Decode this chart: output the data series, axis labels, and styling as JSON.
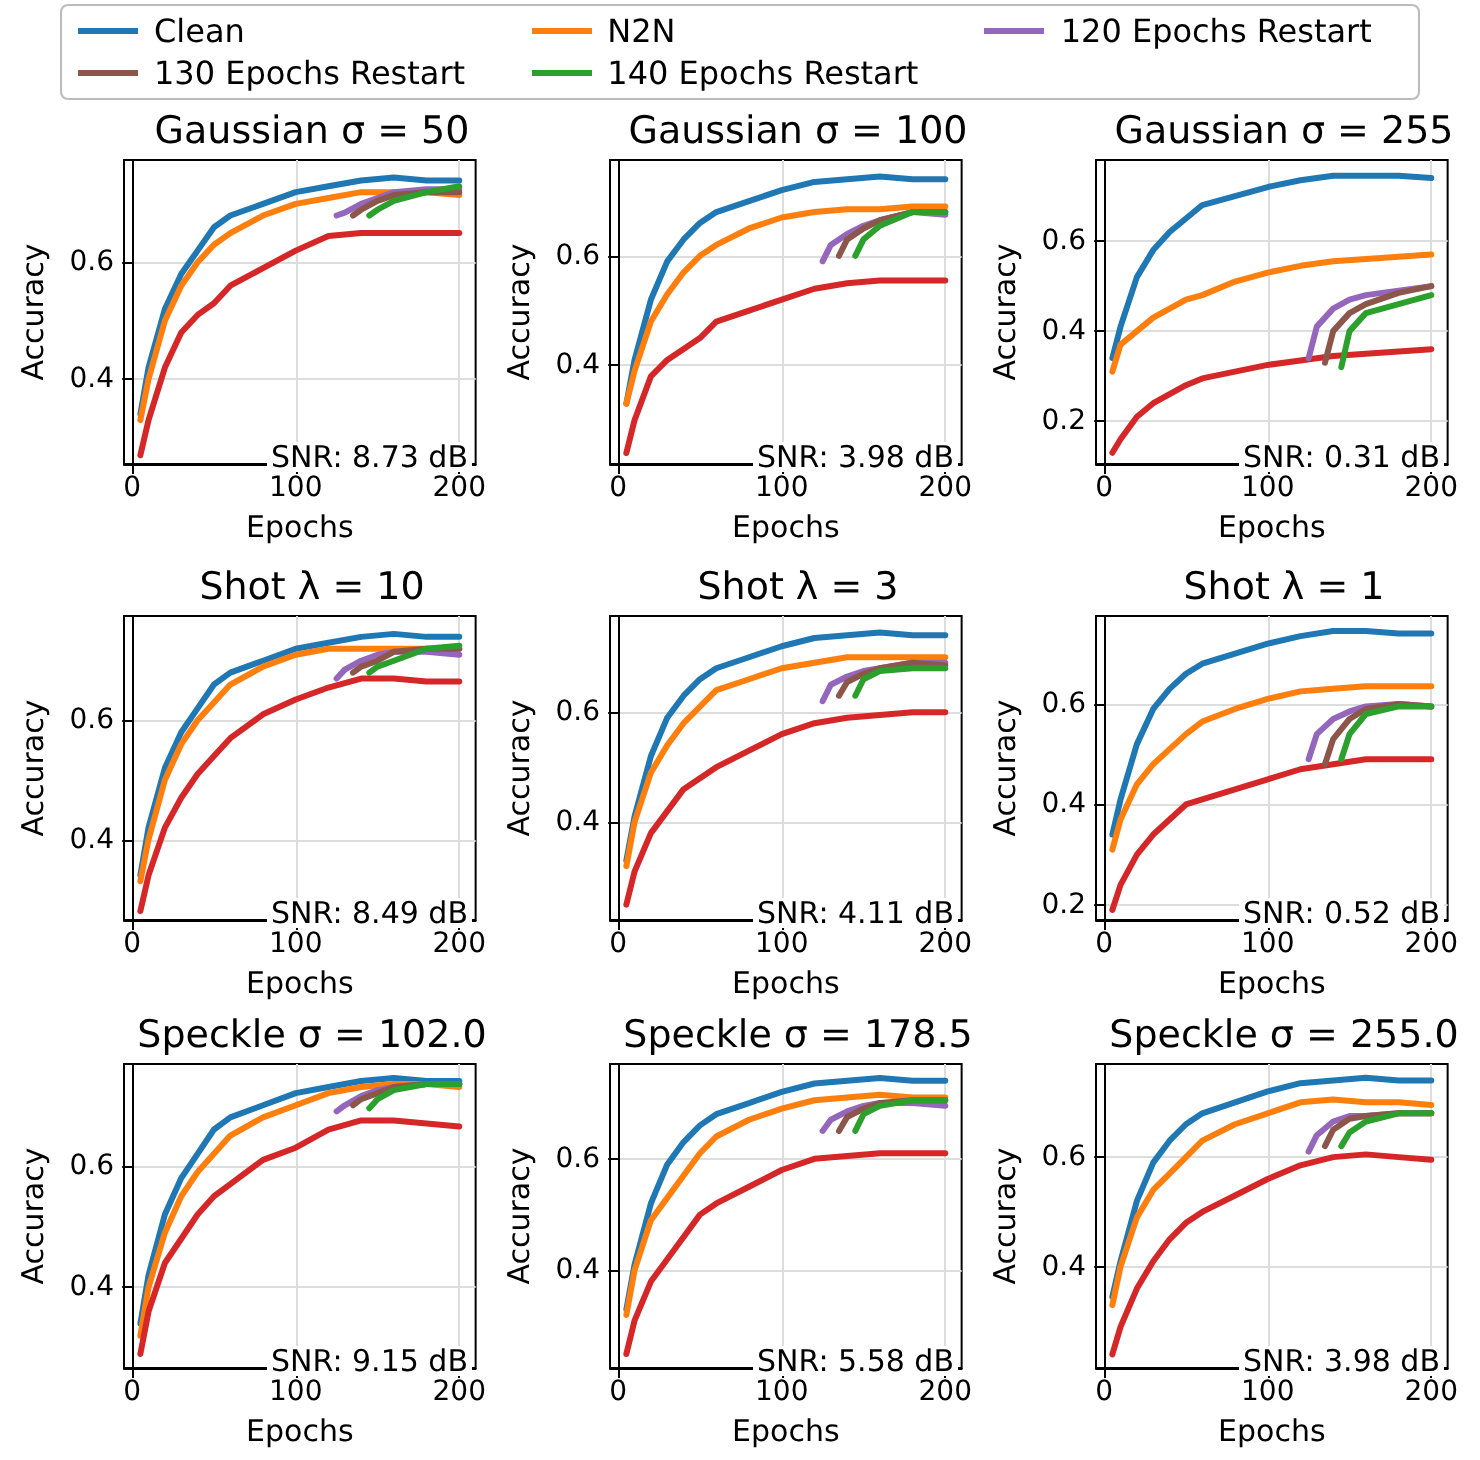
{
  "chart_data": [
    {
      "type": "line",
      "title": "Gaussian σ = 50",
      "xlabel": "Epochs",
      "ylabel": "Accuracy",
      "annotations": [
        "SNR: 8.73 dB"
      ],
      "xlim": [
        -5,
        210
      ],
      "xticks": [
        0,
        100,
        200
      ],
      "ylim": [
        0.255,
        0.775
      ],
      "yticks": [
        0.4,
        0.6
      ],
      "grid": true,
      "legend": "top",
      "series": [
        {
          "name": "Clean",
          "color": "#1f77b4",
          "x": [
            5,
            10,
            20,
            30,
            40,
            50,
            60,
            80,
            100,
            120,
            140,
            160,
            180,
            200
          ],
          "values": [
            0.34,
            0.42,
            0.52,
            0.58,
            0.62,
            0.66,
            0.68,
            0.7,
            0.72,
            0.73,
            0.74,
            0.745,
            0.74,
            0.74
          ]
        },
        {
          "name": "N2N",
          "color": "#ff7f0e",
          "x": [
            5,
            10,
            20,
            30,
            40,
            50,
            60,
            80,
            100,
            120,
            140,
            160,
            180,
            200
          ],
          "values": [
            0.33,
            0.4,
            0.5,
            0.56,
            0.6,
            0.63,
            0.65,
            0.68,
            0.7,
            0.71,
            0.72,
            0.72,
            0.72,
            0.715
          ]
        },
        {
          "color": "#d62728",
          "x": [
            5,
            10,
            20,
            30,
            40,
            50,
            60,
            80,
            100,
            120,
            140,
            160,
            180,
            200
          ],
          "values": [
            0.27,
            0.33,
            0.42,
            0.48,
            0.51,
            0.53,
            0.56,
            0.59,
            0.62,
            0.645,
            0.65,
            0.65,
            0.65,
            0.65
          ]
        },
        {
          "name": "120 Epochs Restart",
          "color": "#9467bd",
          "x": [
            125,
            130,
            140,
            150,
            160,
            180,
            200
          ],
          "values": [
            0.68,
            0.685,
            0.7,
            0.71,
            0.72,
            0.725,
            0.725
          ]
        },
        {
          "name": "130 Epochs Restart",
          "color": "#8c564b",
          "x": [
            135,
            140,
            150,
            160,
            180,
            200
          ],
          "values": [
            0.68,
            0.69,
            0.705,
            0.715,
            0.72,
            0.72
          ]
        },
        {
          "name": "140 Epochs Restart",
          "color": "#2ca02c",
          "x": [
            145,
            150,
            160,
            180,
            200
          ],
          "values": [
            0.68,
            0.69,
            0.705,
            0.72,
            0.73
          ]
        }
      ]
    },
    {
      "type": "line",
      "title": "Gaussian σ = 100",
      "xlabel": "Epochs",
      "ylabel": "Accuracy",
      "annotations": [
        "SNR: 3.98 dB"
      ],
      "xlim": [
        -5,
        210
      ],
      "xticks": [
        0,
        100,
        200
      ],
      "ylim": [
        0.22,
        0.775
      ],
      "yticks": [
        0.4,
        0.6
      ],
      "grid": true,
      "legend": "top",
      "series": [
        {
          "name": "Clean",
          "color": "#1f77b4",
          "x": [
            5,
            10,
            20,
            30,
            40,
            50,
            60,
            80,
            100,
            120,
            140,
            160,
            180,
            200
          ],
          "values": [
            0.33,
            0.41,
            0.52,
            0.59,
            0.63,
            0.66,
            0.68,
            0.7,
            0.72,
            0.735,
            0.74,
            0.745,
            0.74,
            0.74
          ]
        },
        {
          "name": "N2N",
          "color": "#ff7f0e",
          "x": [
            5,
            10,
            20,
            30,
            40,
            50,
            60,
            80,
            100,
            120,
            140,
            160,
            180,
            200
          ],
          "values": [
            0.33,
            0.39,
            0.48,
            0.53,
            0.57,
            0.6,
            0.62,
            0.65,
            0.67,
            0.68,
            0.685,
            0.685,
            0.69,
            0.69
          ]
        },
        {
          "color": "#d62728",
          "x": [
            5,
            10,
            20,
            30,
            40,
            50,
            60,
            80,
            100,
            120,
            140,
            160,
            180,
            200
          ],
          "values": [
            0.24,
            0.3,
            0.38,
            0.41,
            0.43,
            0.45,
            0.48,
            0.5,
            0.52,
            0.54,
            0.55,
            0.555,
            0.555,
            0.555
          ]
        },
        {
          "name": "120 Epochs Restart",
          "color": "#9467bd",
          "x": [
            125,
            130,
            140,
            150,
            160,
            180,
            200
          ],
          "values": [
            0.59,
            0.62,
            0.64,
            0.655,
            0.665,
            0.68,
            0.675
          ]
        },
        {
          "name": "130 Epochs Restart",
          "color": "#8c564b",
          "x": [
            135,
            140,
            150,
            160,
            180,
            200
          ],
          "values": [
            0.6,
            0.63,
            0.65,
            0.665,
            0.68,
            0.68
          ]
        },
        {
          "name": "140 Epochs Restart",
          "color": "#2ca02c",
          "x": [
            145,
            150,
            160,
            180,
            200
          ],
          "values": [
            0.6,
            0.63,
            0.655,
            0.68,
            0.68
          ]
        }
      ]
    },
    {
      "type": "line",
      "title": "Gaussian σ = 255",
      "xlabel": "Epochs",
      "ylabel": "Accuracy",
      "annotations": [
        "SNR: 0.31 dB"
      ],
      "xlim": [
        -5,
        210
      ],
      "xticks": [
        0,
        100,
        200
      ],
      "ylim": [
        0.105,
        0.78
      ],
      "yticks": [
        0.2,
        0.4,
        0.6
      ],
      "grid": true,
      "legend": "top",
      "series": [
        {
          "name": "Clean",
          "color": "#1f77b4",
          "x": [
            5,
            10,
            20,
            30,
            40,
            50,
            60,
            80,
            100,
            120,
            140,
            160,
            180,
            200
          ],
          "values": [
            0.34,
            0.41,
            0.52,
            0.58,
            0.62,
            0.65,
            0.68,
            0.7,
            0.72,
            0.735,
            0.745,
            0.745,
            0.745,
            0.74
          ]
        },
        {
          "name": "N2N",
          "color": "#ff7f0e",
          "x": [
            5,
            10,
            20,
            30,
            40,
            50,
            60,
            80,
            100,
            120,
            140,
            160,
            180,
            200
          ],
          "values": [
            0.31,
            0.37,
            0.4,
            0.43,
            0.45,
            0.47,
            0.48,
            0.51,
            0.53,
            0.545,
            0.555,
            0.56,
            0.565,
            0.57
          ]
        },
        {
          "color": "#d62728",
          "x": [
            5,
            10,
            20,
            30,
            40,
            50,
            60,
            80,
            100,
            120,
            140,
            160,
            180,
            200
          ],
          "values": [
            0.13,
            0.16,
            0.21,
            0.24,
            0.26,
            0.28,
            0.295,
            0.31,
            0.325,
            0.335,
            0.345,
            0.35,
            0.355,
            0.36
          ]
        },
        {
          "name": "120 Epochs Restart",
          "color": "#9467bd",
          "x": [
            125,
            130,
            140,
            150,
            160,
            180,
            200
          ],
          "values": [
            0.34,
            0.41,
            0.45,
            0.47,
            0.48,
            0.49,
            0.5
          ]
        },
        {
          "name": "130 Epochs Restart",
          "color": "#8c564b",
          "x": [
            135,
            140,
            150,
            160,
            180,
            200
          ],
          "values": [
            0.33,
            0.4,
            0.44,
            0.46,
            0.485,
            0.5
          ]
        },
        {
          "name": "140 Epochs Restart",
          "color": "#2ca02c",
          "x": [
            145,
            150,
            160,
            180,
            200
          ],
          "values": [
            0.32,
            0.4,
            0.44,
            0.46,
            0.48
          ]
        }
      ]
    },
    {
      "type": "line",
      "title": "Shot λ = 10",
      "xlabel": "Epochs",
      "ylabel": "Accuracy",
      "annotations": [
        "SNR: 8.49 dB"
      ],
      "xlim": [
        -5,
        210
      ],
      "xticks": [
        0,
        100,
        200
      ],
      "ylim": [
        0.265,
        0.775
      ],
      "yticks": [
        0.4,
        0.6
      ],
      "grid": true,
      "legend": "top",
      "series": [
        {
          "name": "Clean",
          "color": "#1f77b4",
          "x": [
            5,
            10,
            20,
            30,
            40,
            50,
            60,
            80,
            100,
            120,
            140,
            160,
            180,
            200
          ],
          "values": [
            0.34,
            0.42,
            0.52,
            0.58,
            0.62,
            0.66,
            0.68,
            0.7,
            0.72,
            0.73,
            0.74,
            0.745,
            0.74,
            0.74
          ]
        },
        {
          "name": "N2N",
          "color": "#ff7f0e",
          "x": [
            5,
            10,
            20,
            30,
            40,
            50,
            60,
            80,
            100,
            120,
            140,
            160,
            180,
            200
          ],
          "values": [
            0.33,
            0.4,
            0.5,
            0.56,
            0.6,
            0.63,
            0.66,
            0.69,
            0.71,
            0.72,
            0.72,
            0.72,
            0.72,
            0.72
          ]
        },
        {
          "color": "#d62728",
          "x": [
            5,
            10,
            20,
            30,
            40,
            50,
            60,
            80,
            100,
            120,
            140,
            160,
            180,
            200
          ],
          "values": [
            0.28,
            0.34,
            0.42,
            0.47,
            0.51,
            0.54,
            0.57,
            0.61,
            0.635,
            0.655,
            0.67,
            0.67,
            0.665,
            0.665
          ]
        },
        {
          "name": "120 Epochs Restart",
          "color": "#9467bd",
          "x": [
            125,
            130,
            140,
            150,
            160,
            180,
            200
          ],
          "values": [
            0.67,
            0.685,
            0.7,
            0.71,
            0.715,
            0.715,
            0.71
          ]
        },
        {
          "name": "130 Epochs Restart",
          "color": "#8c564b",
          "x": [
            135,
            140,
            150,
            160,
            180,
            200
          ],
          "values": [
            0.68,
            0.69,
            0.7,
            0.715,
            0.72,
            0.72
          ]
        },
        {
          "name": "140 Epochs Restart",
          "color": "#2ca02c",
          "x": [
            145,
            150,
            160,
            180,
            200
          ],
          "values": [
            0.68,
            0.69,
            0.7,
            0.72,
            0.725
          ]
        }
      ]
    },
    {
      "type": "line",
      "title": "Shot λ = 3",
      "xlabel": "Epochs",
      "ylabel": "Accuracy",
      "annotations": [
        "SNR: 4.11 dB"
      ],
      "xlim": [
        -5,
        210
      ],
      "xticks": [
        0,
        100,
        200
      ],
      "ylim": [
        0.222,
        0.775
      ],
      "yticks": [
        0.4,
        0.6
      ],
      "grid": true,
      "legend": "top",
      "series": [
        {
          "name": "Clean",
          "color": "#1f77b4",
          "x": [
            5,
            10,
            20,
            30,
            40,
            50,
            60,
            80,
            100,
            120,
            140,
            160,
            180,
            200
          ],
          "values": [
            0.33,
            0.41,
            0.52,
            0.59,
            0.63,
            0.66,
            0.68,
            0.7,
            0.72,
            0.735,
            0.74,
            0.745,
            0.74,
            0.74
          ]
        },
        {
          "name": "N2N",
          "color": "#ff7f0e",
          "x": [
            5,
            10,
            20,
            30,
            40,
            50,
            60,
            80,
            100,
            120,
            140,
            160,
            180,
            200
          ],
          "values": [
            0.32,
            0.4,
            0.49,
            0.54,
            0.58,
            0.61,
            0.64,
            0.66,
            0.68,
            0.69,
            0.7,
            0.7,
            0.7,
            0.7
          ]
        },
        {
          "color": "#d62728",
          "x": [
            5,
            10,
            20,
            30,
            40,
            50,
            60,
            80,
            100,
            120,
            140,
            160,
            180,
            200
          ],
          "values": [
            0.25,
            0.31,
            0.38,
            0.42,
            0.46,
            0.48,
            0.5,
            0.53,
            0.56,
            0.58,
            0.59,
            0.595,
            0.6,
            0.6
          ]
        },
        {
          "name": "120 Epochs Restart",
          "color": "#9467bd",
          "x": [
            125,
            130,
            140,
            150,
            160,
            180,
            200
          ],
          "values": [
            0.62,
            0.65,
            0.665,
            0.675,
            0.68,
            0.69,
            0.69
          ]
        },
        {
          "name": "130 Epochs Restart",
          "color": "#8c564b",
          "x": [
            135,
            140,
            150,
            160,
            180,
            200
          ],
          "values": [
            0.63,
            0.655,
            0.67,
            0.68,
            0.69,
            0.685
          ]
        },
        {
          "name": "140 Epochs Restart",
          "color": "#2ca02c",
          "x": [
            145,
            150,
            160,
            180,
            200
          ],
          "values": [
            0.63,
            0.66,
            0.675,
            0.68,
            0.68
          ]
        }
      ]
    },
    {
      "type": "line",
      "title": "Shot λ = 1",
      "xlabel": "Epochs",
      "ylabel": "Accuracy",
      "annotations": [
        "SNR: 0.52 dB"
      ],
      "xlim": [
        -5,
        210
      ],
      "xticks": [
        0,
        100,
        200
      ],
      "ylim": [
        0.17,
        0.775
      ],
      "yticks": [
        0.2,
        0.4,
        0.6
      ],
      "grid": true,
      "legend": "top",
      "series": [
        {
          "name": "Clean",
          "color": "#1f77b4",
          "x": [
            5,
            10,
            20,
            30,
            40,
            50,
            60,
            80,
            100,
            120,
            140,
            160,
            180,
            200
          ],
          "values": [
            0.34,
            0.41,
            0.52,
            0.59,
            0.63,
            0.66,
            0.68,
            0.7,
            0.72,
            0.735,
            0.745,
            0.745,
            0.74,
            0.74
          ]
        },
        {
          "name": "N2N",
          "color": "#ff7f0e",
          "x": [
            5,
            10,
            20,
            30,
            40,
            50,
            60,
            80,
            100,
            120,
            140,
            160,
            180,
            200
          ],
          "values": [
            0.31,
            0.37,
            0.44,
            0.48,
            0.51,
            0.54,
            0.565,
            0.59,
            0.61,
            0.625,
            0.63,
            0.635,
            0.635,
            0.635
          ]
        },
        {
          "color": "#d62728",
          "x": [
            5,
            10,
            20,
            30,
            40,
            50,
            60,
            80,
            100,
            120,
            140,
            160,
            180,
            200
          ],
          "values": [
            0.19,
            0.24,
            0.3,
            0.34,
            0.37,
            0.4,
            0.41,
            0.43,
            0.45,
            0.47,
            0.48,
            0.49,
            0.49,
            0.49
          ]
        },
        {
          "name": "120 Epochs Restart",
          "color": "#9467bd",
          "x": [
            125,
            130,
            140,
            150,
            160,
            180,
            200
          ],
          "values": [
            0.49,
            0.54,
            0.57,
            0.585,
            0.595,
            0.6,
            0.595
          ]
        },
        {
          "name": "130 Epochs Restart",
          "color": "#8c564b",
          "x": [
            135,
            140,
            150,
            160,
            180,
            200
          ],
          "values": [
            0.48,
            0.53,
            0.57,
            0.59,
            0.6,
            0.595
          ]
        },
        {
          "name": "140 Epochs Restart",
          "color": "#2ca02c",
          "x": [
            145,
            150,
            160,
            180,
            200
          ],
          "values": [
            0.49,
            0.54,
            0.58,
            0.595,
            0.595
          ]
        }
      ]
    },
    {
      "type": "line",
      "title": "Speckle σ = 102.0",
      "xlabel": "Epochs",
      "ylabel": "Accuracy",
      "annotations": [
        "SNR: 9.15 dB"
      ],
      "xlim": [
        -5,
        210
      ],
      "xticks": [
        0,
        100,
        200
      ],
      "ylim": [
        0.267,
        0.768
      ],
      "yticks": [
        0.4,
        0.6
      ],
      "grid": true,
      "legend": "top",
      "series": [
        {
          "name": "Clean",
          "color": "#1f77b4",
          "x": [
            5,
            10,
            20,
            30,
            40,
            50,
            60,
            80,
            100,
            120,
            140,
            160,
            180,
            200
          ],
          "values": [
            0.34,
            0.42,
            0.52,
            0.58,
            0.62,
            0.66,
            0.68,
            0.7,
            0.72,
            0.73,
            0.74,
            0.745,
            0.74,
            0.74
          ]
        },
        {
          "name": "N2N",
          "color": "#ff7f0e",
          "x": [
            5,
            10,
            20,
            30,
            40,
            50,
            60,
            80,
            100,
            120,
            140,
            160,
            180,
            200
          ],
          "values": [
            0.32,
            0.4,
            0.49,
            0.55,
            0.59,
            0.62,
            0.65,
            0.68,
            0.7,
            0.72,
            0.73,
            0.735,
            0.735,
            0.73
          ]
        },
        {
          "color": "#d62728",
          "x": [
            5,
            10,
            20,
            30,
            40,
            50,
            60,
            80,
            100,
            120,
            140,
            160,
            180,
            200
          ],
          "values": [
            0.29,
            0.36,
            0.44,
            0.48,
            0.52,
            0.55,
            0.57,
            0.61,
            0.63,
            0.66,
            0.675,
            0.675,
            0.67,
            0.665
          ]
        },
        {
          "name": "120 Epochs Restart",
          "color": "#9467bd",
          "x": [
            125,
            130,
            140,
            150,
            160,
            180,
            200
          ],
          "values": [
            0.69,
            0.7,
            0.715,
            0.725,
            0.73,
            0.735,
            0.735
          ]
        },
        {
          "name": "130 Epochs Restart",
          "color": "#8c564b",
          "x": [
            135,
            140,
            150,
            160,
            180,
            200
          ],
          "values": [
            0.7,
            0.71,
            0.72,
            0.73,
            0.735,
            0.735
          ]
        },
        {
          "name": "140 Epochs Restart",
          "color": "#2ca02c",
          "x": [
            145,
            150,
            160,
            180,
            200
          ],
          "values": [
            0.695,
            0.71,
            0.725,
            0.735,
            0.735
          ]
        }
      ]
    },
    {
      "type": "line",
      "title": "Speckle σ = 178.5",
      "xlabel": "Epochs",
      "ylabel": "Accuracy",
      "annotations": [
        "SNR: 5.58 dB"
      ],
      "xlim": [
        -5,
        210
      ],
      "xticks": [
        0,
        100,
        200
      ],
      "ylim": [
        0.225,
        0.77
      ],
      "yticks": [
        0.4,
        0.6
      ],
      "grid": true,
      "legend": "top",
      "series": [
        {
          "name": "Clean",
          "color": "#1f77b4",
          "x": [
            5,
            10,
            20,
            30,
            40,
            50,
            60,
            80,
            100,
            120,
            140,
            160,
            180,
            200
          ],
          "values": [
            0.33,
            0.41,
            0.52,
            0.59,
            0.63,
            0.66,
            0.68,
            0.7,
            0.72,
            0.735,
            0.74,
            0.745,
            0.74,
            0.74
          ]
        },
        {
          "name": "N2N",
          "color": "#ff7f0e",
          "x": [
            5,
            10,
            20,
            30,
            40,
            50,
            60,
            80,
            100,
            120,
            140,
            160,
            180,
            200
          ],
          "values": [
            0.32,
            0.4,
            0.49,
            0.53,
            0.57,
            0.61,
            0.64,
            0.67,
            0.69,
            0.705,
            0.71,
            0.715,
            0.71,
            0.71
          ]
        },
        {
          "color": "#d62728",
          "x": [
            5,
            10,
            20,
            30,
            40,
            50,
            60,
            80,
            100,
            120,
            140,
            160,
            180,
            200
          ],
          "values": [
            0.25,
            0.31,
            0.38,
            0.42,
            0.46,
            0.5,
            0.52,
            0.55,
            0.58,
            0.6,
            0.605,
            0.61,
            0.61,
            0.61
          ]
        },
        {
          "name": "120 Epochs Restart",
          "color": "#9467bd",
          "x": [
            125,
            130,
            140,
            150,
            160,
            180,
            200
          ],
          "values": [
            0.65,
            0.67,
            0.685,
            0.695,
            0.7,
            0.7,
            0.695
          ]
        },
        {
          "name": "130 Epochs Restart",
          "color": "#8c564b",
          "x": [
            135,
            140,
            150,
            160,
            180,
            200
          ],
          "values": [
            0.65,
            0.675,
            0.69,
            0.7,
            0.705,
            0.705
          ]
        },
        {
          "name": "140 Epochs Restart",
          "color": "#2ca02c",
          "x": [
            145,
            150,
            160,
            180,
            200
          ],
          "values": [
            0.65,
            0.68,
            0.695,
            0.705,
            0.705
          ]
        }
      ]
    },
    {
      "type": "line",
      "title": "Speckle σ = 255.0",
      "xlabel": "Epochs",
      "ylabel": "Accuracy",
      "annotations": [
        "SNR: 3.98 dB"
      ],
      "xlim": [
        -5,
        210
      ],
      "xticks": [
        0,
        100,
        200
      ],
      "ylim": [
        0.215,
        0.77
      ],
      "yticks": [
        0.4,
        0.6
      ],
      "grid": true,
      "legend": "top",
      "series": [
        {
          "name": "Clean",
          "color": "#1f77b4",
          "x": [
            5,
            10,
            20,
            30,
            40,
            50,
            60,
            80,
            100,
            120,
            140,
            160,
            180,
            200
          ],
          "values": [
            0.345,
            0.41,
            0.52,
            0.59,
            0.63,
            0.66,
            0.68,
            0.7,
            0.72,
            0.735,
            0.74,
            0.745,
            0.74,
            0.74
          ]
        },
        {
          "name": "N2N",
          "color": "#ff7f0e",
          "x": [
            5,
            10,
            20,
            30,
            40,
            50,
            60,
            80,
            100,
            120,
            140,
            160,
            180,
            200
          ],
          "values": [
            0.33,
            0.4,
            0.49,
            0.54,
            0.57,
            0.6,
            0.63,
            0.66,
            0.68,
            0.7,
            0.705,
            0.7,
            0.7,
            0.695
          ]
        },
        {
          "color": "#d62728",
          "x": [
            5,
            10,
            20,
            30,
            40,
            50,
            60,
            80,
            100,
            120,
            140,
            160,
            180,
            200
          ],
          "values": [
            0.24,
            0.29,
            0.36,
            0.41,
            0.45,
            0.48,
            0.5,
            0.53,
            0.56,
            0.585,
            0.6,
            0.605,
            0.6,
            0.595
          ]
        },
        {
          "name": "120 Epochs Restart",
          "color": "#9467bd",
          "x": [
            125,
            130,
            140,
            150,
            160,
            180,
            200
          ],
          "values": [
            0.61,
            0.64,
            0.665,
            0.675,
            0.675,
            0.68,
            0.68
          ]
        },
        {
          "name": "130 Epochs Restart",
          "color": "#8c564b",
          "x": [
            135,
            140,
            150,
            160,
            180,
            200
          ],
          "values": [
            0.62,
            0.65,
            0.67,
            0.675,
            0.68,
            0.68
          ]
        },
        {
          "name": "140 Epochs Restart",
          "color": "#2ca02c",
          "x": [
            145,
            150,
            160,
            180,
            200
          ],
          "values": [
            0.62,
            0.645,
            0.665,
            0.68,
            0.68
          ]
        }
      ]
    }
  ]
}
